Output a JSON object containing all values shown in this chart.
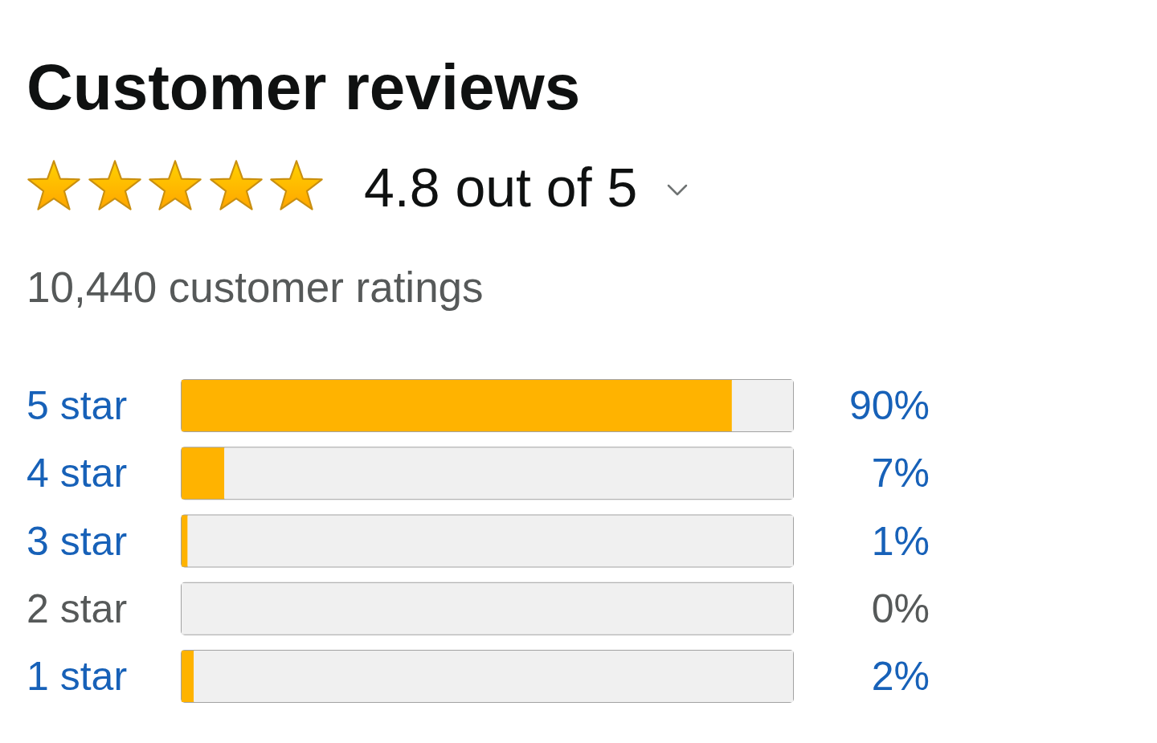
{
  "chart_data": {
    "type": "bar",
    "orientation": "horizontal",
    "stacked": true,
    "title": "Customer reviews",
    "annotations": [
      "4.8 out of 5",
      "10,440 customer ratings"
    ],
    "categories": [
      "5 star",
      "4 star",
      "3 star",
      "2 star",
      "1 star"
    ],
    "series": [
      {
        "color": "#ffb300",
        "values": [
          90,
          7,
          1,
          0,
          2
        ],
        "value_labels": [
          "90%",
          "7%",
          "1%",
          "0%",
          "2%"
        ]
      },
      {
        "color": "#f0f0f0",
        "values": [
          10,
          93,
          99,
          100,
          98
        ]
      }
    ],
    "xlim": [
      0,
      100
    ],
    "tick_labels": "y"
  }
}
